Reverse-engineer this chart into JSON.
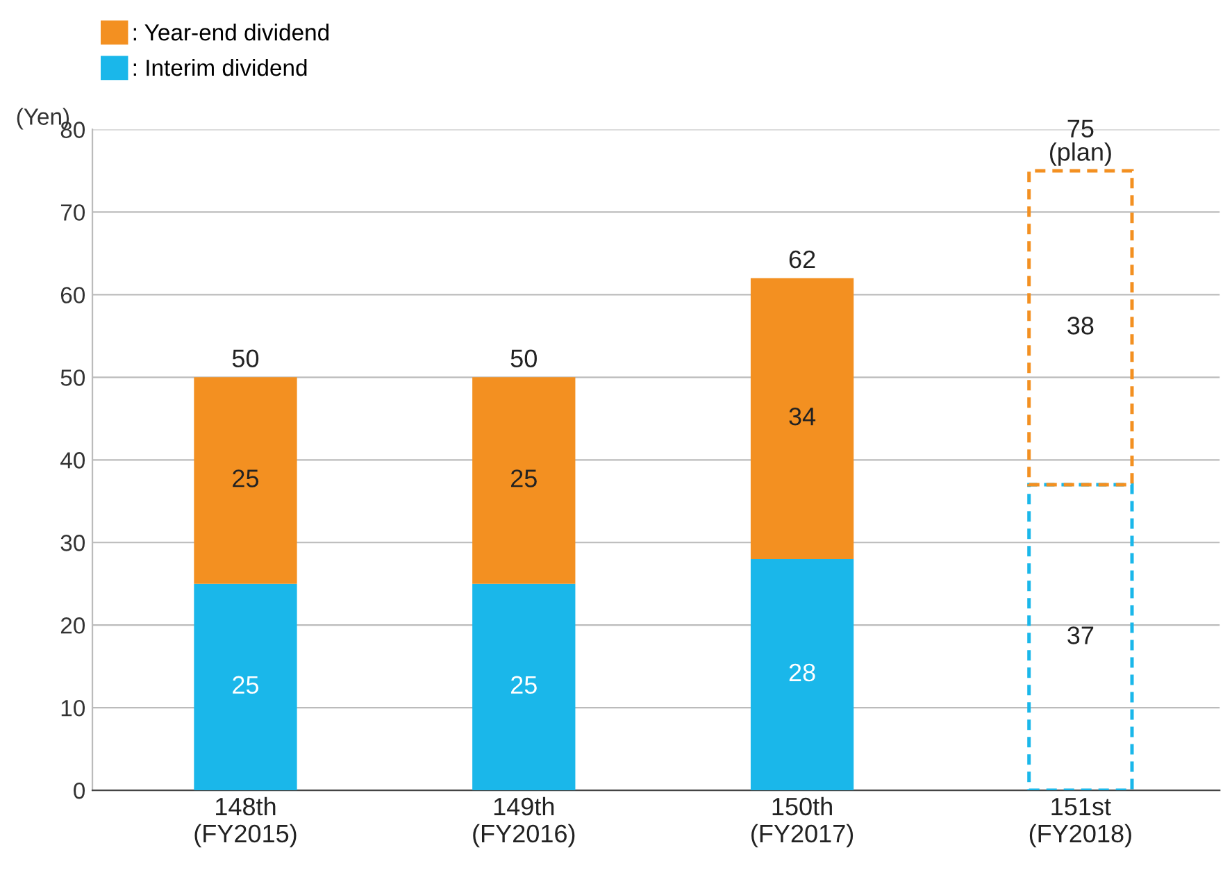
{
  "chart_data": {
    "type": "bar",
    "stacked": true,
    "ylabel": "(Yen)",
    "categories": [
      "148th\n(FY2015)",
      "149th\n(FY2016)",
      "150th\n(FY2017)",
      "151st\n(FY2018)"
    ],
    "series": [
      {
        "name": ": Interim dividend",
        "color": "#1ab7ea",
        "values": [
          25,
          25,
          28,
          null
        ]
      },
      {
        "name": ": Year-end dividend",
        "color": "#f39021",
        "values": [
          25,
          25,
          34,
          null
        ]
      },
      {
        "color": "#1ab7ea",
        "values": [
          null,
          null,
          null,
          37
        ],
        "line_style": "dashed"
      },
      {
        "color": "#f39021",
        "values": [
          null,
          null,
          null,
          38
        ],
        "line_style": "dashed"
      }
    ],
    "totals": [
      "50",
      "50",
      "62",
      "75\n(plan)"
    ],
    "data_labels": true,
    "ylim": [
      0,
      80
    ],
    "yticks": [
      0,
      10,
      20,
      30,
      40,
      50,
      60,
      70,
      80
    ],
    "grid": "y",
    "legend": "top left"
  }
}
